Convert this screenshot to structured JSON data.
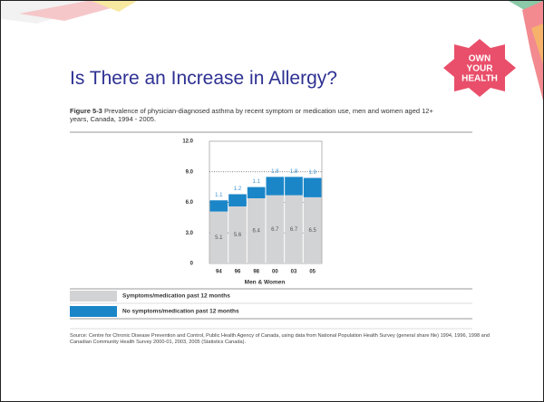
{
  "slide_title": "Is There an Increase in Allergy?",
  "logo": [
    "OWN",
    "YOUR",
    "HEALTH"
  ],
  "figure": {
    "label": "Figure 5-3",
    "caption": "Prevalence of physician-diagnosed asthma by recent symptom or medication use, men and women aged 12+ years, Canada, 1994 - 2005."
  },
  "source": "Source: Centre for Chronic Disease Prevention and Control, Public Health Agency of Canada, using data from National Population Health Survey (general share file) 1994, 1996, 1998 and Canadian Community Health Survey 2000-01, 2003, 2005 (Statistics Canada).",
  "chart_data": {
    "type": "bar",
    "stacked": true,
    "xlabel": "Men & Women",
    "categories": [
      "94",
      "96",
      "98",
      "00",
      "03",
      "05"
    ],
    "series": [
      {
        "name": "Symptoms/medication past 12 months",
        "color": "#d2d3d5",
        "label_color": "#555555",
        "values": [
          5.1,
          5.6,
          6.4,
          6.7,
          6.7,
          6.5
        ]
      },
      {
        "name": "No symptoms/medication past 12 months",
        "color": "#1a86c8",
        "label_color": "#3a92d4",
        "values": [
          1.1,
          1.2,
          1.1,
          1.8,
          1.8,
          1.9
        ]
      }
    ],
    "ylim": [
      0,
      12
    ],
    "yticks": [
      0,
      {
        "value": 3,
        "label": "3.0"
      },
      {
        "value": 6,
        "label": "6.0"
      },
      {
        "value": 9,
        "label": "9.0"
      },
      {
        "value": 12,
        "label": "12.0"
      }
    ],
    "grid": true
  }
}
